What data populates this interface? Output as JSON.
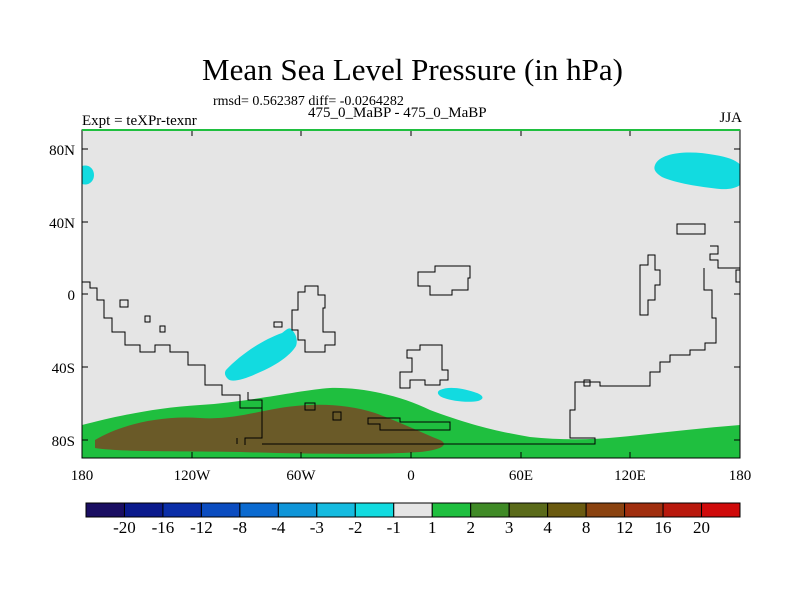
{
  "title": "Mean Sea Level Pressure (in hPa)",
  "stats_line": "rmsd= 0.562387 diff= -0.0264282",
  "left_label": "Expt = teXPr-texnr",
  "center_label": "475_0_MaBP - 475_0_MaBP",
  "right_label": "JJA",
  "y_ticks": [
    "80N",
    "40N",
    "0",
    "40S",
    "80S"
  ],
  "x_ticks": [
    "180",
    "120W",
    "60W",
    "0",
    "60E",
    "120E",
    "180"
  ],
  "colorbar": {
    "labels": [
      "-20",
      "-16",
      "-12",
      "-8",
      "-4",
      "-3",
      "-2",
      "-1",
      "1",
      "2",
      "3",
      "4",
      "8",
      "12",
      "16",
      "20"
    ],
    "colors": [
      "#1a0e62",
      "#0a1a8c",
      "#0a2ea8",
      "#0b4cc0",
      "#0b6ad0",
      "#0f95d8",
      "#15bbe0",
      "#12dbe0",
      "#e5e5e5",
      "#1fbf3f",
      "#3f8a26",
      "#5a6a1a",
      "#6a5a10",
      "#8a4210",
      "#a02e0e",
      "#b8180c",
      "#cf0a0a"
    ]
  },
  "map_colors": {
    "background": "#e5e5e5",
    "cyan": "#12dbe0",
    "green": "#1fbf3f",
    "olive": "#5a6a1a",
    "brown": "#6a5a28"
  }
}
